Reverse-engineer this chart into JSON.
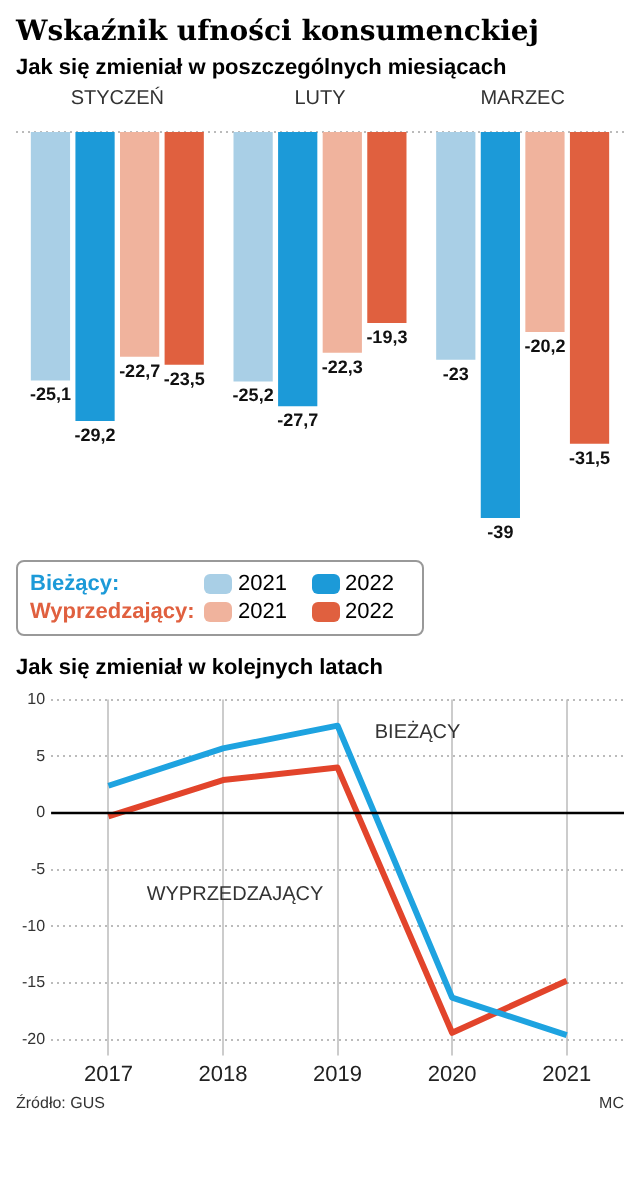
{
  "chart_data": [
    {
      "type": "bar",
      "title": "Wskaźnik ufności konsumenckiej",
      "subtitle": "Jak się zmieniał w poszczególnych miesiącach",
      "categories": [
        "STYCZEŃ",
        "LUTY",
        "MARZEC"
      ],
      "series": [
        {
          "name": "2021",
          "color": "#a9cfe6",
          "values": [
            -25.1,
            -25.2,
            -23
          ],
          "value_labels": [
            "-25,1",
            "-25,2",
            "-23"
          ]
        },
        {
          "name": "2022",
          "color": "#1c9ad8",
          "values": [
            -29.2,
            -27.7,
            -39
          ],
          "value_labels": [
            "-29,2",
            "-27,7",
            "-39"
          ]
        },
        {
          "name": "2021",
          "color": "#f0b39d",
          "values": [
            -22.7,
            -22.3,
            -20.2
          ],
          "value_labels": [
            "-22,7",
            "-22,3",
            "-20,2"
          ]
        },
        {
          "name": "2022",
          "color": "#e0603f",
          "values": [
            -23.5,
            -19.3,
            -31.5
          ],
          "value_labels": [
            "-23,5",
            "-19,3",
            "-31,5"
          ]
        }
      ],
      "annotations": [
        "Bieżący:",
        "Wyprzedzający:"
      ],
      "tick_labels": "x",
      "grid": false,
      "legend": "bottom left"
    },
    {
      "type": "line",
      "title": "Jak się zmieniał w kolejnych latach",
      "categories": [
        "2017",
        "2018",
        "2019",
        "2020",
        "2021"
      ],
      "series": [
        {
          "name": "BIEŻĄCY",
          "color": "#1ea3e0",
          "values": [
            2.4,
            5.7,
            7.7,
            -16.3,
            -19.6
          ]
        },
        {
          "name": "WYPRZEDZAJĄCY",
          "color": "#e2442b",
          "values": [
            -0.3,
            2.9,
            4.0,
            -19.4,
            -14.8
          ]
        }
      ],
      "ylim": [
        -20,
        10
      ],
      "yticks": [
        -20,
        -15,
        -10,
        -5,
        0,
        5,
        10
      ],
      "grid": true,
      "legend": false,
      "marker": "none",
      "line_style": "solid",
      "ref_lines": [
        {
          "axis": "y",
          "value": 0,
          "color": "#000000"
        }
      ],
      "annotations": [
        "Źródło: GUS",
        "MC"
      ]
    }
  ]
}
